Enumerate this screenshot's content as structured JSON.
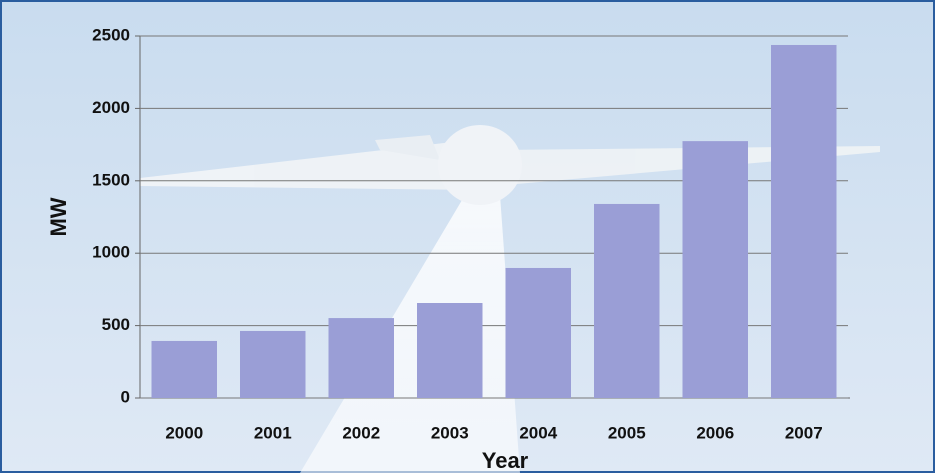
{
  "chart_data": {
    "type": "bar",
    "x_label": "Year",
    "y_label": "MW",
    "categories": [
      "2000",
      "2001",
      "2002",
      "2003",
      "2004",
      "2005",
      "2006",
      "2007"
    ],
    "values": [
      394,
      463,
      552,
      656,
      898,
      1340,
      1774,
      2438
    ],
    "color": "#9a9ed6",
    "ylim": [
      0,
      2500
    ],
    "yticks": [
      0,
      500,
      1000,
      1500,
      2000,
      2500
    ],
    "grid": true
  }
}
